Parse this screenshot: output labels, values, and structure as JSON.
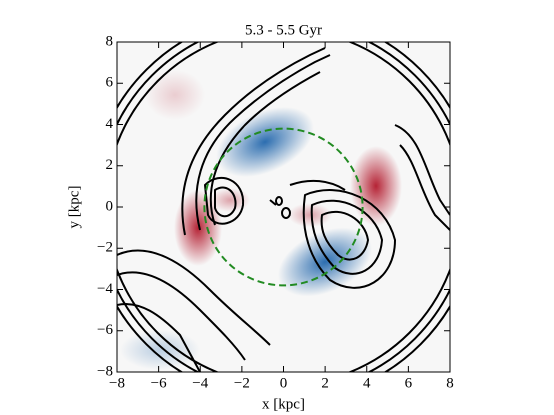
{
  "chart_data": {
    "type": "contour",
    "title": "5.3 - 5.5 Gyr",
    "xlabel": "x [kpc]",
    "ylabel": "y [kpc]",
    "xlim": [
      -8,
      8
    ],
    "ylim": [
      -8,
      8
    ],
    "xticks": [
      {
        "value": -8,
        "label": "−8"
      },
      {
        "value": -6,
        "label": "−6"
      },
      {
        "value": -4,
        "label": "−4"
      },
      {
        "value": -2,
        "label": "−2"
      },
      0,
      2,
      4,
      6,
      8
    ],
    "yticks": [
      {
        "value": -8,
        "label": "−8"
      },
      {
        "value": -6,
        "label": "−6"
      },
      {
        "value": -4,
        "label": "−4"
      },
      {
        "value": -2,
        "label": "−2"
      },
      0,
      2,
      4,
      6,
      8
    ],
    "circle_radius": 3.8,
    "circle_color": "#228b22"
  }
}
